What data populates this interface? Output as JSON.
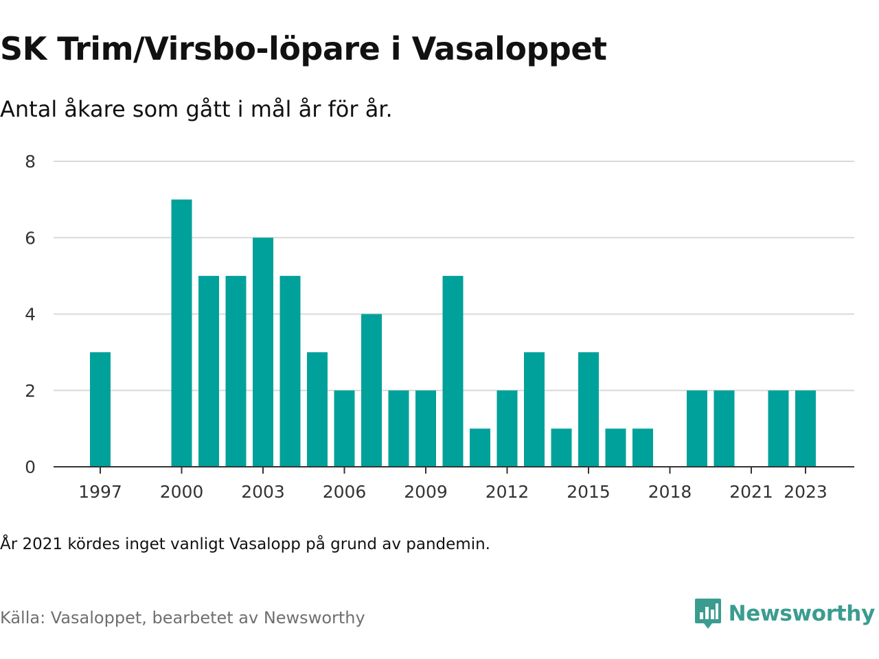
{
  "header": {
    "title": "SK Trim/Virsbo-löpare i Vasaloppet",
    "subtitle": "Antal åkare som gått i mål år för år."
  },
  "footer": {
    "note": "År 2021 kördes inget vanligt Vasalopp på grund av pandemin.",
    "source": "Källa: Vasaloppet, bearbetet av Newsworthy",
    "brand": "Newsworthy",
    "brand_icon": "newsworthy-logo-icon"
  },
  "colors": {
    "bar": "#00a19a",
    "grid": "#d9d9d9",
    "axis": "#333333",
    "brand": "#3a9c8f"
  },
  "chart_data": {
    "type": "bar",
    "x": [
      1997,
      1998,
      1999,
      2000,
      2001,
      2002,
      2003,
      2004,
      2005,
      2006,
      2007,
      2008,
      2009,
      2010,
      2011,
      2012,
      2013,
      2014,
      2015,
      2016,
      2017,
      2018,
      2019,
      2020,
      2021,
      2022,
      2023
    ],
    "values": [
      3,
      0,
      0,
      7,
      5,
      5,
      6,
      5,
      3,
      2,
      4,
      2,
      2,
      5,
      1,
      2,
      3,
      1,
      3,
      1,
      1,
      0,
      2,
      2,
      0,
      2,
      2
    ],
    "xticks": [
      1997,
      2000,
      2003,
      2006,
      2009,
      2012,
      2015,
      2018,
      2021,
      2023
    ],
    "yticks": [
      0,
      2,
      4,
      6,
      8
    ],
    "ylim": [
      0,
      8
    ],
    "grid": true,
    "legend": false
  }
}
